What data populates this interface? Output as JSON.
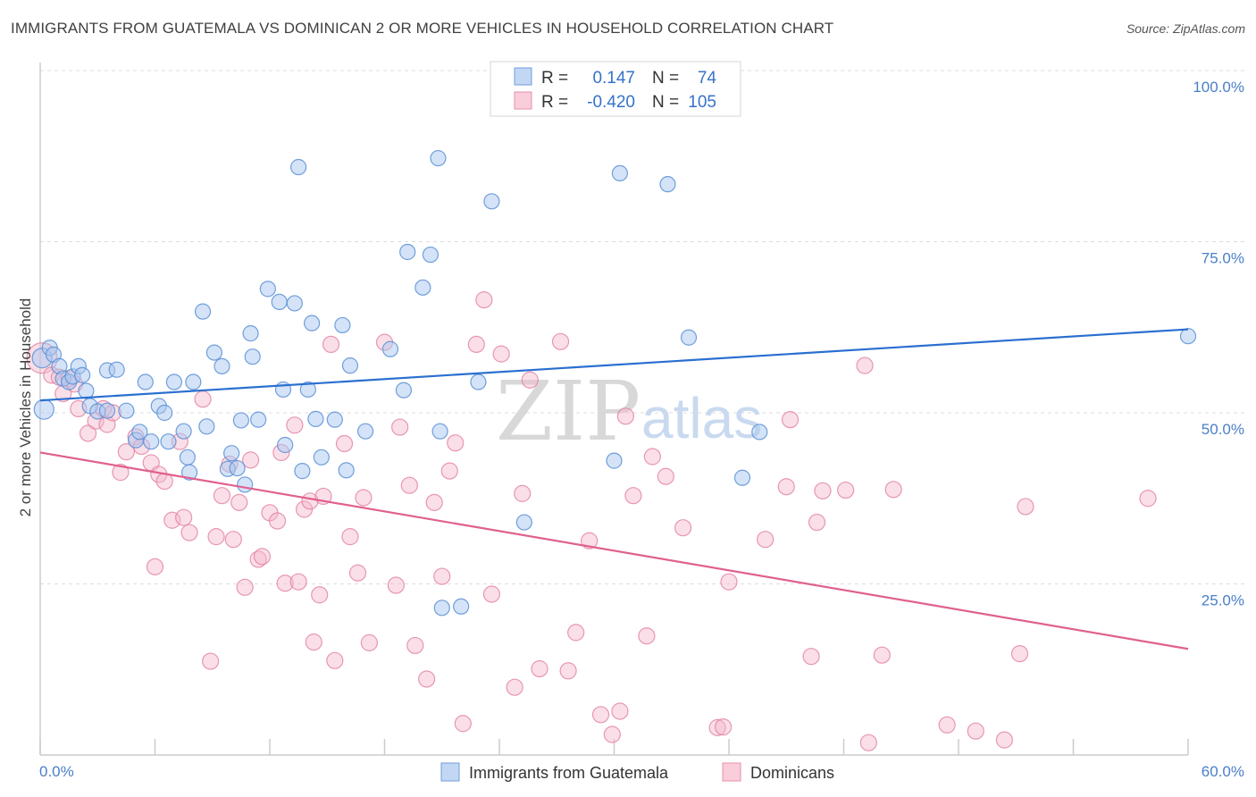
{
  "title": "IMMIGRANTS FROM GUATEMALA VS DOMINICAN 2 OR MORE VEHICLES IN HOUSEHOLD CORRELATION CHART",
  "source": "Source: ZipAtlas.com",
  "watermark": {
    "zip": "ZIP",
    "atlas": "atlas"
  },
  "colors": {
    "blue_fill": "#a9c8f0",
    "blue_stroke": "#5b8fd6",
    "blue_line": "#2a6fd0",
    "pink_fill": "#f5b8cb",
    "pink_stroke": "#e27fa0",
    "pink_line": "#e0608f",
    "tick_label": "#4a7fc8",
    "grid": "#dddddd"
  },
  "legend": {
    "rows": [
      {
        "r_label": "R =",
        "r_value": "0.147",
        "n_label": "N =",
        "n_value": "74"
      },
      {
        "r_label": "R =",
        "r_value": "-0.420",
        "n_label": "N =",
        "n_value": "105"
      }
    ]
  },
  "chart_data": {
    "type": "scatter",
    "title": "IMMIGRANTS FROM GUATEMALA VS DOMINICAN 2 OR MORE VEHICLES IN HOUSEHOLD CORRELATION CHART",
    "xlabel": "",
    "ylabel": "2 or more Vehicles in Household",
    "xlim": [
      0,
      60
    ],
    "ylim": [
      0,
      100
    ],
    "x_tick_labels": [
      "0.0%",
      "60.0%"
    ],
    "y_ticks": [
      25,
      50,
      75,
      100
    ],
    "y_tick_labels": [
      "25.0%",
      "50.0%",
      "75.0%",
      "100.0%"
    ],
    "grid": true,
    "legend_position": "top-center",
    "series": [
      {
        "name": "Immigrants from Guatemala",
        "color": "#a9c8f0",
        "trend": {
          "x": [
            0,
            60
          ],
          "y": [
            51.8,
            62.2
          ]
        },
        "points": [
          [
            0.1,
            58.0
          ],
          [
            0.2,
            50.5
          ],
          [
            0.5,
            59.5
          ],
          [
            0.7,
            58.5
          ],
          [
            1.0,
            56.8
          ],
          [
            1.2,
            55.0
          ],
          [
            1.5,
            54.5
          ],
          [
            1.7,
            55.3
          ],
          [
            2.0,
            56.8
          ],
          [
            2.2,
            55.5
          ],
          [
            2.4,
            53.2
          ],
          [
            2.6,
            51.0
          ],
          [
            3.0,
            50.2
          ],
          [
            3.5,
            50.3
          ],
          [
            3.5,
            56.2
          ],
          [
            4.0,
            56.3
          ],
          [
            4.5,
            50.3
          ],
          [
            5.0,
            46.0
          ],
          [
            5.2,
            47.2
          ],
          [
            5.5,
            54.5
          ],
          [
            5.8,
            45.8
          ],
          [
            6.2,
            51.0
          ],
          [
            6.5,
            50.0
          ],
          [
            6.7,
            45.8
          ],
          [
            7.0,
            54.5
          ],
          [
            7.5,
            47.3
          ],
          [
            7.7,
            43.5
          ],
          [
            7.8,
            41.3
          ],
          [
            8.0,
            54.5
          ],
          [
            8.5,
            64.8
          ],
          [
            8.7,
            48.0
          ],
          [
            9.1,
            58.8
          ],
          [
            9.5,
            56.8
          ],
          [
            9.8,
            41.8
          ],
          [
            10.0,
            44.1
          ],
          [
            10.3,
            41.9
          ],
          [
            10.5,
            48.9
          ],
          [
            10.7,
            39.5
          ],
          [
            11.0,
            61.6
          ],
          [
            11.1,
            58.2
          ],
          [
            11.4,
            49.0
          ],
          [
            11.9,
            68.1
          ],
          [
            12.5,
            66.2
          ],
          [
            12.7,
            53.4
          ],
          [
            12.8,
            45.3
          ],
          [
            13.3,
            66.0
          ],
          [
            13.5,
            85.9
          ],
          [
            13.7,
            41.5
          ],
          [
            14.0,
            53.4
          ],
          [
            14.2,
            63.1
          ],
          [
            14.4,
            49.1
          ],
          [
            14.7,
            43.5
          ],
          [
            15.4,
            49.0
          ],
          [
            15.8,
            62.8
          ],
          [
            16.0,
            41.6
          ],
          [
            16.2,
            56.9
          ],
          [
            17.0,
            47.3
          ],
          [
            18.3,
            59.3
          ],
          [
            19.0,
            53.3
          ],
          [
            19.2,
            73.5
          ],
          [
            20.0,
            68.3
          ],
          [
            20.4,
            73.1
          ],
          [
            20.8,
            87.2
          ],
          [
            20.9,
            47.3
          ],
          [
            21.0,
            21.5
          ],
          [
            22.0,
            21.7
          ],
          [
            22.9,
            54.5
          ],
          [
            23.6,
            80.9
          ],
          [
            25.3,
            34.0
          ],
          [
            30.0,
            43.0
          ],
          [
            30.3,
            85.0
          ],
          [
            32.8,
            83.4
          ],
          [
            33.9,
            61.0
          ],
          [
            36.7,
            40.5
          ],
          [
            37.6,
            47.2
          ],
          [
            60.0,
            61.2
          ]
        ]
      },
      {
        "name": "Dominicans",
        "color": "#f5b8cb",
        "trend": {
          "x": [
            0,
            60
          ],
          "y": [
            44.2,
            15.5
          ]
        },
        "points": [
          [
            0.1,
            58.0
          ],
          [
            0.6,
            55.5
          ],
          [
            1.0,
            55.2
          ],
          [
            1.2,
            52.8
          ],
          [
            1.5,
            55.0
          ],
          [
            1.8,
            54.2
          ],
          [
            2.0,
            50.6
          ],
          [
            2.5,
            47.0
          ],
          [
            2.9,
            48.8
          ],
          [
            3.3,
            50.6
          ],
          [
            3.5,
            48.3
          ],
          [
            3.8,
            50.0
          ],
          [
            4.2,
            41.3
          ],
          [
            4.5,
            44.3
          ],
          [
            5.0,
            46.5
          ],
          [
            5.3,
            45.1
          ],
          [
            5.8,
            42.7
          ],
          [
            6.0,
            27.5
          ],
          [
            6.2,
            41.0
          ],
          [
            6.5,
            40.0
          ],
          [
            6.9,
            34.3
          ],
          [
            7.3,
            45.8
          ],
          [
            7.5,
            34.7
          ],
          [
            7.8,
            32.5
          ],
          [
            8.5,
            52.0
          ],
          [
            8.9,
            13.7
          ],
          [
            9.2,
            31.9
          ],
          [
            9.5,
            37.9
          ],
          [
            9.9,
            42.5
          ],
          [
            10.1,
            31.5
          ],
          [
            10.4,
            36.9
          ],
          [
            10.7,
            24.5
          ],
          [
            11.0,
            43.1
          ],
          [
            11.4,
            28.6
          ],
          [
            11.6,
            29.0
          ],
          [
            12.0,
            35.4
          ],
          [
            12.4,
            34.2
          ],
          [
            12.6,
            44.2
          ],
          [
            12.8,
            25.1
          ],
          [
            13.3,
            48.2
          ],
          [
            13.5,
            25.3
          ],
          [
            13.8,
            35.9
          ],
          [
            14.1,
            37.1
          ],
          [
            14.3,
            16.5
          ],
          [
            14.6,
            23.4
          ],
          [
            14.8,
            37.8
          ],
          [
            15.2,
            60.0
          ],
          [
            15.4,
            13.8
          ],
          [
            15.9,
            45.5
          ],
          [
            16.2,
            31.9
          ],
          [
            16.6,
            26.6
          ],
          [
            16.9,
            37.6
          ],
          [
            17.2,
            16.4
          ],
          [
            18.0,
            60.3
          ],
          [
            18.6,
            24.8
          ],
          [
            18.8,
            47.9
          ],
          [
            19.3,
            39.4
          ],
          [
            19.6,
            16.0
          ],
          [
            20.2,
            11.1
          ],
          [
            20.6,
            36.9
          ],
          [
            21.0,
            26.1
          ],
          [
            21.4,
            41.5
          ],
          [
            21.7,
            45.6
          ],
          [
            22.1,
            4.6
          ],
          [
            22.8,
            60.0
          ],
          [
            23.2,
            66.5
          ],
          [
            23.6,
            23.5
          ],
          [
            24.1,
            58.6
          ],
          [
            24.8,
            9.9
          ],
          [
            25.2,
            38.2
          ],
          [
            25.6,
            54.8
          ],
          [
            26.1,
            12.6
          ],
          [
            27.2,
            60.4
          ],
          [
            27.6,
            12.3
          ],
          [
            28.0,
            17.9
          ],
          [
            28.7,
            31.3
          ],
          [
            29.3,
            5.9
          ],
          [
            29.9,
            3.0
          ],
          [
            30.3,
            6.4
          ],
          [
            30.6,
            49.5
          ],
          [
            31.0,
            37.9
          ],
          [
            31.7,
            17.4
          ],
          [
            32.0,
            43.6
          ],
          [
            32.7,
            40.7
          ],
          [
            33.6,
            33.2
          ],
          [
            35.4,
            4.0
          ],
          [
            35.7,
            4.1
          ],
          [
            36.0,
            25.3
          ],
          [
            37.9,
            31.5
          ],
          [
            39.0,
            39.2
          ],
          [
            39.2,
            49.0
          ],
          [
            40.3,
            14.4
          ],
          [
            40.6,
            34.0
          ],
          [
            40.9,
            38.6
          ],
          [
            42.1,
            38.7
          ],
          [
            43.1,
            56.9
          ],
          [
            43.3,
            1.8
          ],
          [
            44.0,
            14.6
          ],
          [
            44.6,
            38.8
          ],
          [
            47.4,
            4.4
          ],
          [
            48.9,
            3.5
          ],
          [
            50.4,
            2.2
          ],
          [
            51.2,
            14.8
          ],
          [
            51.5,
            36.3
          ],
          [
            57.9,
            37.5
          ]
        ]
      }
    ]
  },
  "bottom_legend": [
    "Immigrants from Guatemala",
    "Dominicans"
  ]
}
